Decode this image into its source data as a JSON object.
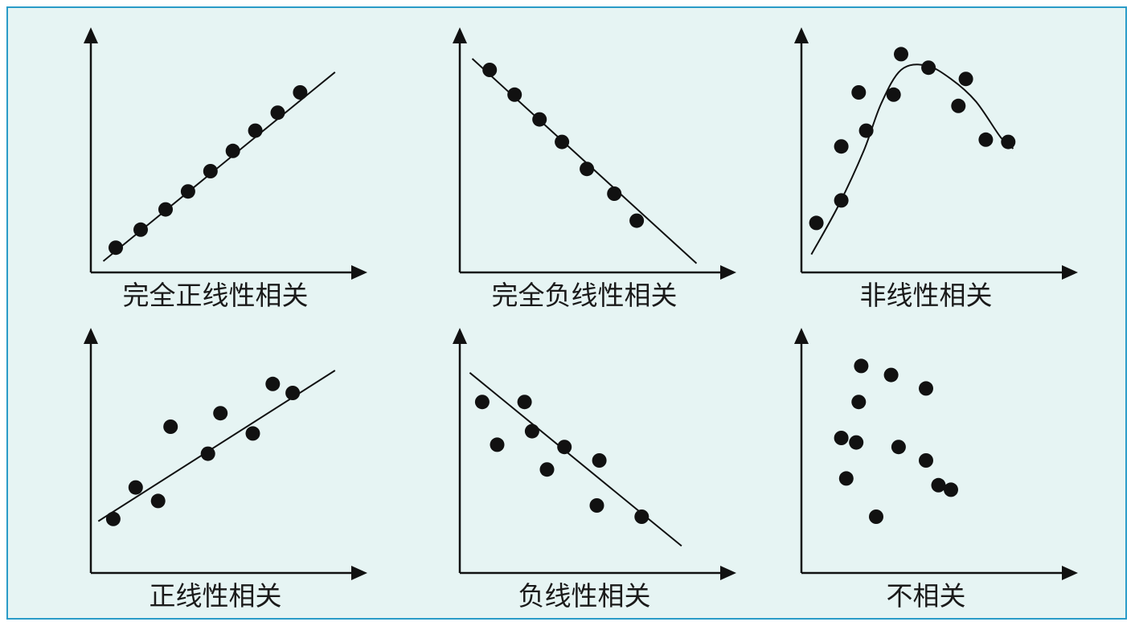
{
  "colors": {
    "background": "#e6f4f3",
    "border": "#2a9bc8",
    "ink": "#111111"
  },
  "chart_data": [
    {
      "type": "scatter",
      "title": "完全正线性相关",
      "trend": "linear",
      "trendline": {
        "x": [
          0.5,
          9.8
        ],
        "y": [
          0.5,
          8.9
        ]
      },
      "points": [
        [
          1,
          1.1
        ],
        [
          2,
          1.9
        ],
        [
          3,
          2.8
        ],
        [
          3.9,
          3.6
        ],
        [
          4.8,
          4.5
        ],
        [
          5.7,
          5.4
        ],
        [
          6.6,
          6.3
        ],
        [
          7.5,
          7.1
        ],
        [
          8.4,
          8.0
        ]
      ]
    },
    {
      "type": "scatter",
      "title": "完全负线性相关",
      "trend": "linear",
      "trendline": {
        "x": [
          0.5,
          9.5
        ],
        "y": [
          9.5,
          0.4
        ]
      },
      "points": [
        [
          1.2,
          9.0
        ],
        [
          2.2,
          7.9
        ],
        [
          3.2,
          6.8
        ],
        [
          4.1,
          5.8
        ],
        [
          5.1,
          4.6
        ],
        [
          6.2,
          3.5
        ],
        [
          7.1,
          2.3
        ]
      ]
    },
    {
      "type": "scatter",
      "title": "非线性相关",
      "trend": "curve",
      "trendline": {
        "x": [
          0.4,
          1.5,
          2.5,
          3.2,
          4.0,
          5.0,
          6.0,
          7.0,
          8.0,
          8.5
        ],
        "y": [
          0.8,
          3.0,
          5.4,
          7.5,
          9.0,
          9.2,
          8.6,
          7.6,
          6.0,
          5.5
        ]
      },
      "points": [
        [
          0.6,
          2.2
        ],
        [
          1.6,
          3.2
        ],
        [
          1.6,
          5.6
        ],
        [
          2.3,
          8.0
        ],
        [
          2.6,
          6.3
        ],
        [
          3.7,
          7.9
        ],
        [
          4.0,
          9.7
        ],
        [
          5.1,
          9.1
        ],
        [
          6.3,
          7.4
        ],
        [
          6.6,
          8.6
        ],
        [
          7.4,
          5.9
        ],
        [
          8.3,
          5.8
        ]
      ]
    },
    {
      "type": "scatter",
      "title": "正线性相关",
      "trend": "linear",
      "trendline": {
        "x": [
          0.3,
          9.8
        ],
        "y": [
          2.3,
          9.0
        ]
      },
      "points": [
        [
          0.9,
          2.4
        ],
        [
          1.8,
          3.8
        ],
        [
          2.7,
          3.2
        ],
        [
          3.2,
          6.5
        ],
        [
          4.7,
          5.3
        ],
        [
          5.2,
          7.1
        ],
        [
          6.5,
          6.2
        ],
        [
          7.3,
          8.4
        ],
        [
          8.1,
          8.0
        ]
      ]
    },
    {
      "type": "scatter",
      "title": "负线性相关",
      "trend": "linear",
      "trendline": {
        "x": [
          0.4,
          8.9
        ],
        "y": [
          8.9,
          1.2
        ]
      },
      "points": [
        [
          0.9,
          7.6
        ],
        [
          1.5,
          5.7
        ],
        [
          2.6,
          7.6
        ],
        [
          2.9,
          6.3
        ],
        [
          3.5,
          4.6
        ],
        [
          4.2,
          5.6
        ],
        [
          5.5,
          3.0
        ],
        [
          5.6,
          5.0
        ],
        [
          7.3,
          2.5
        ]
      ]
    },
    {
      "type": "scatter",
      "title": "不相关",
      "trend": "none",
      "points": [
        [
          2.4,
          9.2
        ],
        [
          3.6,
          8.8
        ],
        [
          5.0,
          8.2
        ],
        [
          2.3,
          7.6
        ],
        [
          1.6,
          6.0
        ],
        [
          2.2,
          5.8
        ],
        [
          3.9,
          5.6
        ],
        [
          5.0,
          5.0
        ],
        [
          1.8,
          4.2
        ],
        [
          5.5,
          3.9
        ],
        [
          6.0,
          3.7
        ],
        [
          3.0,
          2.5
        ]
      ]
    }
  ]
}
